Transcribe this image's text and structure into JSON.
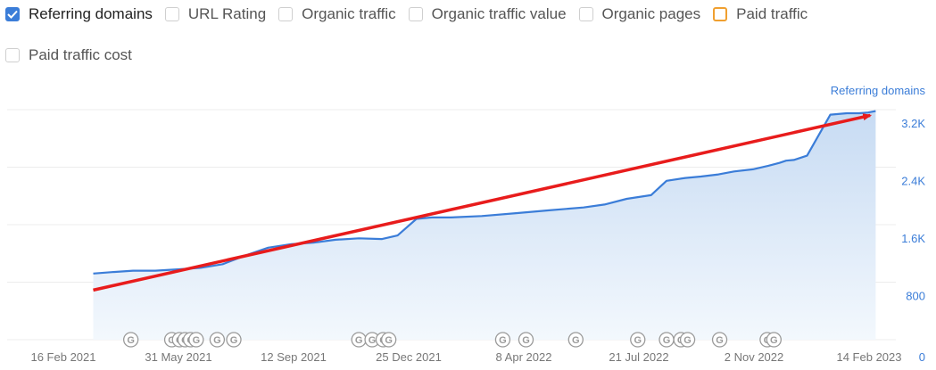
{
  "metrics": [
    {
      "label": "Referring domains",
      "checked": true,
      "style": "blue"
    },
    {
      "label": "URL Rating",
      "checked": false,
      "style": "gray"
    },
    {
      "label": "Organic traffic",
      "checked": false,
      "style": "gray"
    },
    {
      "label": "Organic traffic value",
      "checked": false,
      "style": "gray"
    },
    {
      "label": "Organic pages",
      "checked": false,
      "style": "gray"
    },
    {
      "label": "Paid traffic",
      "checked": false,
      "style": "orange"
    },
    {
      "label": "Paid traffic cost",
      "checked": false,
      "style": "gray"
    }
  ],
  "colors": {
    "series": "#3b7dd8",
    "area_top": "#c7dbf3",
    "area_bottom": "#f3f8fd",
    "arrow": "#e81c1c",
    "grid": "#ececec",
    "tick_text": "#3b7dd8",
    "date_text": "#777777",
    "marker": "#9a9a9a"
  },
  "chart_data": {
    "type": "area",
    "y_axis_title": "Referring domains",
    "y_axis_position": "right",
    "ylim": [
      0,
      3200
    ],
    "y_ticks": [
      0,
      800,
      1600,
      2400,
      3200
    ],
    "y_tick_labels": [
      "0",
      "800",
      "1.6K",
      "2.4K",
      "3.2K"
    ],
    "x_tick_labels": [
      "16 Feb 2021",
      "31 May 2021",
      "12 Sep 2021",
      "25 Dec 2021",
      "8 Apr 2022",
      "21 Jul 2022",
      "2 Nov 2022",
      "14 Feb 2023"
    ],
    "x_tick_dates": [
      "2021-02-16",
      "2021-05-31",
      "2021-09-12",
      "2021-12-25",
      "2022-04-08",
      "2022-07-21",
      "2022-11-02",
      "2023-02-14"
    ],
    "grid": true,
    "series": [
      {
        "name": "Referring domains",
        "x": [
          "2021-03-15",
          "2021-04-01",
          "2021-04-20",
          "2021-05-10",
          "2021-06-01",
          "2021-06-20",
          "2021-07-10",
          "2021-08-01",
          "2021-08-20",
          "2021-09-10",
          "2021-09-30",
          "2021-10-20",
          "2021-11-10",
          "2021-12-01",
          "2021-12-15",
          "2022-01-01",
          "2022-01-15",
          "2022-02-01",
          "2022-03-01",
          "2022-04-01",
          "2022-05-01",
          "2022-06-01",
          "2022-06-20",
          "2022-07-10",
          "2022-08-01",
          "2022-08-15",
          "2022-09-01",
          "2022-09-15",
          "2022-10-01",
          "2022-10-15",
          "2022-11-01",
          "2022-11-15",
          "2022-11-25",
          "2022-12-01",
          "2022-12-08",
          "2022-12-20",
          "2023-01-10",
          "2023-01-25",
          "2023-02-05",
          "2023-02-13",
          "2023-02-20"
        ],
        "values": [
          920,
          940,
          960,
          960,
          980,
          1000,
          1050,
          1180,
          1280,
          1330,
          1350,
          1390,
          1410,
          1400,
          1450,
          1680,
          1700,
          1700,
          1720,
          1760,
          1800,
          1840,
          1880,
          1960,
          2010,
          2210,
          2250,
          2270,
          2300,
          2340,
          2370,
          2420,
          2460,
          2490,
          2500,
          2560,
          3130,
          3150,
          3150,
          3160,
          3180
        ]
      }
    ],
    "annotations": [
      {
        "type": "arrow",
        "from": {
          "x": "2021-03-15",
          "y": 690
        },
        "to": {
          "x": "2023-02-15",
          "y": 3120
        }
      }
    ],
    "google_markers": {
      "label": "G",
      "dates": [
        "2021-04-18",
        "2021-05-25",
        "2021-06-01",
        "2021-06-06",
        "2021-06-11",
        "2021-06-16",
        "2021-07-05",
        "2021-07-20",
        "2021-11-10",
        "2021-11-22",
        "2021-12-02",
        "2021-12-07",
        "2022-03-20",
        "2022-04-10",
        "2022-05-25",
        "2022-07-20",
        "2022-08-15",
        "2022-08-28",
        "2022-09-03",
        "2022-10-02",
        "2022-11-14",
        "2022-11-20"
      ]
    }
  }
}
